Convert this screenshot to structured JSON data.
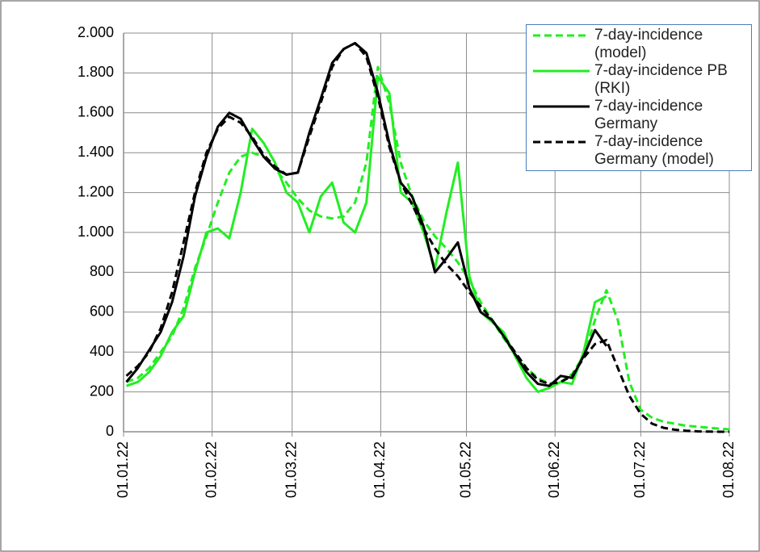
{
  "chart_data": {
    "type": "line",
    "x": [
      "02.01.22",
      "06.01.22",
      "10.01.22",
      "14.01.22",
      "18.01.22",
      "22.01.22",
      "26.01.22",
      "30.01.22",
      "03.02.22",
      "07.02.22",
      "11.02.22",
      "15.02.22",
      "19.02.22",
      "23.02.22",
      "27.02.22",
      "03.03.22",
      "07.03.22",
      "11.03.22",
      "15.03.22",
      "19.03.22",
      "23.03.22",
      "27.03.22",
      "31.03.22",
      "04.04.22",
      "08.04.22",
      "12.04.22",
      "16.04.22",
      "20.04.22",
      "24.04.22",
      "28.04.22",
      "02.05.22",
      "06.05.22",
      "10.05.22",
      "14.05.22",
      "18.05.22",
      "22.05.22",
      "26.05.22",
      "30.05.22",
      "03.06.22",
      "07.06.22",
      "11.06.22",
      "15.06.22",
      "19.06.22",
      "23.06.22",
      "27.06.22",
      "01.07.22",
      "05.07.22",
      "09.07.22",
      "13.07.22",
      "17.07.22",
      "21.07.22",
      "25.07.22",
      "29.07.22",
      "01.08.22"
    ],
    "series": [
      {
        "name": "7-day-incidence (model)",
        "color": "#22ee22",
        "dashed": true,
        "values": [
          250,
          270,
          320,
          400,
          480,
          620,
          820,
          980,
          1150,
          1300,
          1380,
          1400,
          1380,
          1320,
          1250,
          1170,
          1110,
          1080,
          1070,
          1080,
          1150,
          1350,
          1830,
          1650,
          1350,
          1180,
          1060,
          980,
          920,
          850,
          760,
          650,
          560,
          470,
          390,
          320,
          270,
          240,
          250,
          290,
          380,
          560,
          710,
          560,
          250,
          110,
          70,
          50,
          40,
          30,
          25,
          20,
          15,
          12
        ]
      },
      {
        "name": "7-day-incidence PB (RKI)",
        "color": "#22ee22",
        "dashed": false,
        "values": [
          230,
          250,
          300,
          380,
          500,
          580,
          800,
          1000,
          1020,
          970,
          1200,
          1520,
          1450,
          1350,
          1200,
          1150,
          1000,
          1180,
          1250,
          1050,
          1000,
          1150,
          1780,
          1700,
          1200,
          1150,
          1000,
          820,
          1100,
          1350,
          780,
          600,
          550,
          500,
          380,
          270,
          200,
          220,
          250,
          240,
          400,
          650,
          680,
          null,
          null,
          null,
          null,
          null,
          null,
          null,
          null,
          null,
          null,
          null
        ]
      },
      {
        "name": "7-day-incidence Germany",
        "color": "#000000",
        "dashed": false,
        "values": [
          250,
          320,
          410,
          500,
          650,
          880,
          1180,
          1380,
          1530,
          1600,
          1570,
          1470,
          1380,
          1320,
          1290,
          1300,
          1500,
          1670,
          1850,
          1920,
          1950,
          1900,
          1700,
          1450,
          1250,
          1180,
          1030,
          800,
          870,
          950,
          720,
          600,
          560,
          480,
          390,
          300,
          240,
          230,
          280,
          270,
          380,
          510,
          430,
          null,
          null,
          null,
          null,
          null,
          null,
          null,
          null,
          null,
          null,
          null
        ]
      },
      {
        "name": "7-day-incidence Germany (model)",
        "color": "#000000",
        "dashed": true,
        "values": [
          280,
          330,
          400,
          520,
          700,
          950,
          1200,
          1400,
          1520,
          1580,
          1550,
          1480,
          1390,
          1330,
          1290,
          1300,
          1480,
          1650,
          1830,
          1920,
          1950,
          1880,
          1680,
          1430,
          1250,
          1140,
          1020,
          920,
          840,
          780,
          700,
          630,
          560,
          480,
          400,
          320,
          260,
          240,
          250,
          280,
          370,
          440,
          460,
          320,
          180,
          90,
          40,
          20,
          10,
          5,
          2,
          1,
          0,
          0
        ]
      }
    ],
    "xlim": [
      "01.01.22",
      "01.08.22"
    ],
    "xticks": [
      "01.01.22",
      "01.02.22",
      "01.03.22",
      "01.04.22",
      "01.05.22",
      "01.06.22",
      "01.07.22",
      "01.08.22"
    ],
    "ylim": [
      0,
      2000
    ],
    "yticks": [
      0,
      200,
      400,
      600,
      800,
      {
        "value": 1000,
        "label": "1.000"
      },
      {
        "value": 1200,
        "label": "1.200"
      },
      {
        "value": 1400,
        "label": "1.400"
      },
      {
        "value": 1600,
        "label": "1.600"
      },
      {
        "value": 1800,
        "label": "1.800"
      },
      {
        "value": 2000,
        "label": "2.000"
      }
    ],
    "grid": true,
    "legend": "upper right"
  }
}
